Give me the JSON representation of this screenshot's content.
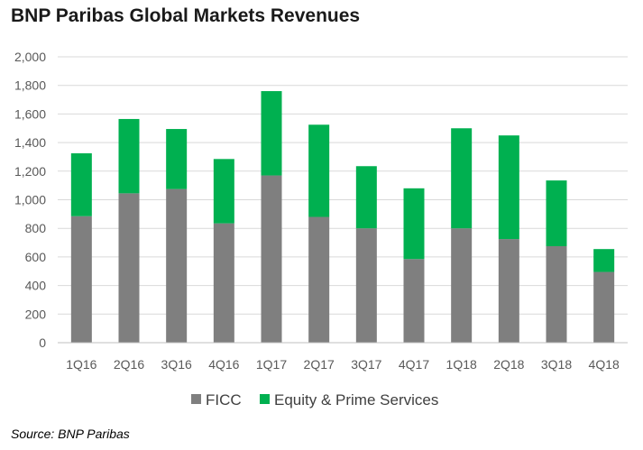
{
  "title": "BNP Paribas Global Markets Revenues",
  "source": "Source: BNP Paribas",
  "colors": {
    "ficc": "#7f7f7f",
    "equity": "#00b050",
    "grid": "#d9d9d9",
    "axis": "#bfbfbf"
  },
  "chart_data": {
    "type": "bar",
    "stacked": true,
    "title": "BNP Paribas Global Markets Revenues",
    "xlabel": "",
    "ylabel": "",
    "categories": [
      "1Q16",
      "2Q16",
      "3Q16",
      "4Q16",
      "1Q17",
      "2Q17",
      "3Q17",
      "4Q17",
      "1Q18",
      "2Q18",
      "3Q18",
      "4Q18"
    ],
    "series": [
      {
        "name": "FICC",
        "values": [
          885,
          1045,
          1075,
          835,
          1170,
          880,
          800,
          585,
          800,
          725,
          675,
          495
        ]
      },
      {
        "name": "Equity & Prime Services",
        "values": [
          440,
          520,
          420,
          450,
          590,
          645,
          435,
          495,
          700,
          725,
          460,
          160
        ]
      }
    ],
    "ylim": [
      0,
      2000
    ],
    "yticks": [
      "0",
      "200",
      "400",
      "600",
      "800",
      "1,000",
      "1,200",
      "1,400",
      "1,600",
      "1,800",
      "2,000"
    ],
    "grid": true,
    "legend_position": "bottom"
  }
}
